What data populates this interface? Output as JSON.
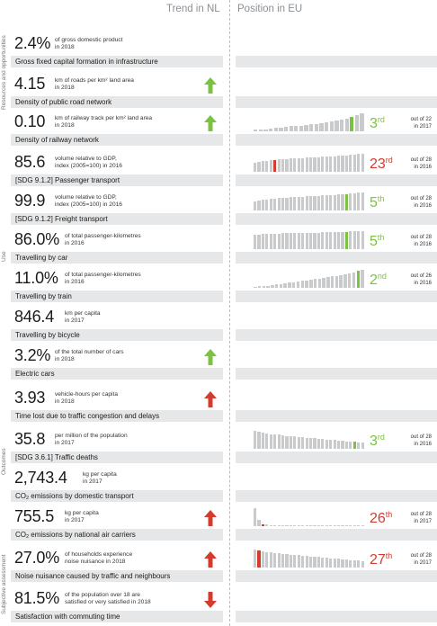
{
  "header": {
    "trend_title": "Trend in NL",
    "position_title": "Position in EU"
  },
  "sections": [
    {
      "label": "Resources and opportunities"
    },
    {
      "label": "Use"
    },
    {
      "label": "Outcomes"
    },
    {
      "label": "Subjective assessment"
    }
  ],
  "colors": {
    "green": "#7cc242",
    "red": "#d23b2e",
    "bar_grey": "#c8cacc",
    "label_bg": "#e6e7e8"
  },
  "indicators": [
    {
      "value": "2.4%",
      "desc1": "of gross domestic product",
      "desc2": "in 2018",
      "label": "Gross fixed capital formation in infrastructure",
      "trend": "none"
    },
    {
      "value": "4.15",
      "desc1": "km of roads per km² land area",
      "desc2": "in 2018",
      "label": "Density of public road network",
      "trend": "up-green"
    },
    {
      "value": "0.10",
      "desc1": "km of railway track per km² land area",
      "desc2": "in 2018",
      "label": "Density of railway network",
      "trend": "up-green",
      "rank_num": "3",
      "rank_suf": "rd",
      "rank_color": "green",
      "out_of1": "out of 22",
      "out_of2": "in 2017",
      "bars": [
        0.08,
        0.1,
        0.12,
        0.14,
        0.2,
        0.22,
        0.25,
        0.28,
        0.3,
        0.32,
        0.35,
        0.38,
        0.42,
        0.45,
        0.5,
        0.55,
        0.6,
        0.65,
        0.7,
        0.8,
        0.9,
        1.0
      ],
      "highlight": 19
    },
    {
      "value": "85.6",
      "desc1": "volume relative to GDP,",
      "desc2": "index (2005=100) in 2016",
      "label": "[SDG 9.1.2] Passenger transport",
      "trend": "none",
      "rank_num": "23",
      "rank_suf": "rd",
      "rank_color": "red",
      "out_of1": "out of 28",
      "out_of2": "in 2016",
      "bars": [
        0.5,
        0.55,
        0.6,
        0.62,
        0.64,
        0.66,
        0.68,
        0.7,
        0.72,
        0.73,
        0.74,
        0.75,
        0.76,
        0.78,
        0.79,
        0.8,
        0.82,
        0.83,
        0.84,
        0.86,
        0.87,
        0.88,
        0.9,
        0.92,
        0.94,
        0.96,
        0.98,
        1.0
      ],
      "highlight": 5
    },
    {
      "value": "99.9",
      "desc1": "volume relative to GDP,",
      "desc2": "index (2005=100) in 2016",
      "label": "[SDG 9.1.2] Freight transport",
      "trend": "none",
      "rank_num": "5",
      "rank_suf": "th",
      "rank_color": "green",
      "out_of1": "out of 28",
      "out_of2": "in 2016",
      "bars": [
        0.5,
        0.55,
        0.6,
        0.62,
        0.64,
        0.66,
        0.68,
        0.7,
        0.72,
        0.73,
        0.74,
        0.75,
        0.76,
        0.78,
        0.79,
        0.8,
        0.82,
        0.83,
        0.84,
        0.86,
        0.87,
        0.88,
        0.9,
        0.92,
        0.94,
        0.96,
        0.98,
        1.0
      ],
      "highlight": 23
    },
    {
      "value": "86.0%",
      "desc1": "of total passenger-kilometres",
      "desc2": "in 2016",
      "label": "Travelling by car",
      "trend": "none",
      "rank_num": "5",
      "rank_suf": "th",
      "rank_color": "green",
      "out_of1": "out of 28",
      "out_of2": "in 2016",
      "bars": [
        0.8,
        0.82,
        0.83,
        0.84,
        0.85,
        0.86,
        0.87,
        0.88,
        0.88,
        0.89,
        0.89,
        0.9,
        0.9,
        0.91,
        0.91,
        0.92,
        0.92,
        0.93,
        0.93,
        0.94,
        0.94,
        0.95,
        0.96,
        0.97,
        0.98,
        0.99,
        1.0,
        1.0
      ],
      "highlight": 23
    },
    {
      "value": "11.0%",
      "desc1": "of total passenger-kilometres",
      "desc2": "in 2016",
      "label": "Travelling by train",
      "trend": "none",
      "rank_num": "2",
      "rank_suf": "nd",
      "rank_color": "green",
      "out_of1": "out of 26",
      "out_of2": "in 2016",
      "bars": [
        0.05,
        0.08,
        0.1,
        0.12,
        0.15,
        0.18,
        0.2,
        0.25,
        0.28,
        0.3,
        0.35,
        0.38,
        0.42,
        0.45,
        0.48,
        0.5,
        0.55,
        0.6,
        0.63,
        0.66,
        0.7,
        0.75,
        0.8,
        0.85,
        0.95,
        1.0
      ],
      "highlight": 24
    },
    {
      "value": "846.4",
      "desc1": "km per capita",
      "desc2": "in 2017",
      "label": "Travelling by bicycle",
      "trend": "none"
    },
    {
      "value": "3.2%",
      "desc1": "of the total number of cars",
      "desc2": "in 2018",
      "label": "Electric cars",
      "trend": "up-green"
    },
    {
      "value": "3.93",
      "desc1": "vehicle-hours per capita",
      "desc2": "in 2018",
      "label": "Time lost due to traffic congestion and delays",
      "trend": "up-red"
    },
    {
      "value": "35.8",
      "desc1": "per million of the population",
      "desc2": "in 2017",
      "label": "[SDG 3.6.1] Traffic deaths",
      "trend": "none",
      "rank_num": "3",
      "rank_suf": "rd",
      "rank_color": "green",
      "out_of1": "out of 28",
      "out_of2": "in 2016",
      "bars": [
        1.0,
        0.95,
        0.9,
        0.86,
        0.82,
        0.8,
        0.78,
        0.75,
        0.72,
        0.7,
        0.68,
        0.66,
        0.64,
        0.62,
        0.6,
        0.58,
        0.56,
        0.54,
        0.52,
        0.5,
        0.48,
        0.46,
        0.44,
        0.42,
        0.4,
        0.38,
        0.36,
        0.34
      ],
      "highlight": 25
    },
    {
      "value": "2,743.4",
      "desc1": "kg per capita",
      "desc2": "in 2017",
      "label_pre": "CO",
      "label_sub": "2",
      "label_post": " emissions by domestic transport",
      "trend": "none"
    },
    {
      "value": "755.5",
      "desc1": "kg per capita",
      "desc2": "in 2017",
      "label_pre": "CO",
      "label_sub": "2",
      "label_post": " emissions by national air carriers",
      "trend": "up-red",
      "rank_num": "26",
      "rank_suf": "th",
      "rank_color": "red",
      "out_of1": "out of 28",
      "out_of2": "in 2017",
      "bars": [
        1.0,
        0.35,
        0.12,
        0.08,
        0.06,
        0.05,
        0.05,
        0.04,
        0.04,
        0.04,
        0.03,
        0.03,
        0.03,
        0.03,
        0.03,
        0.03,
        0.03,
        0.03,
        0.03,
        0.03,
        0.03,
        0.03,
        0.03,
        0.03,
        0.03,
        0.03,
        0.03,
        0.03
      ],
      "highlight": 2
    },
    {
      "value": "27.0%",
      "desc1": "of households experience",
      "desc2": "noise nuisance in 2018",
      "label": "Noise nuisance caused by traffic and neighbours",
      "trend": "up-red",
      "rank_num": "27",
      "rank_suf": "th",
      "rank_color": "red",
      "out_of1": "out of 28",
      "out_of2": "in 2017",
      "bars": [
        1.0,
        0.95,
        0.9,
        0.86,
        0.83,
        0.8,
        0.78,
        0.76,
        0.74,
        0.72,
        0.7,
        0.68,
        0.66,
        0.64,
        0.62,
        0.6,
        0.58,
        0.56,
        0.54,
        0.52,
        0.5,
        0.48,
        0.46,
        0.44,
        0.42,
        0.4,
        0.38,
        0.36
      ],
      "highlight": 1
    },
    {
      "value": "81.5%",
      "desc1": "of the population over 18 are",
      "desc2": "satisfied or very satisfied in 2018",
      "label": "Satisfaction with commuting time",
      "trend": "down-red"
    }
  ]
}
